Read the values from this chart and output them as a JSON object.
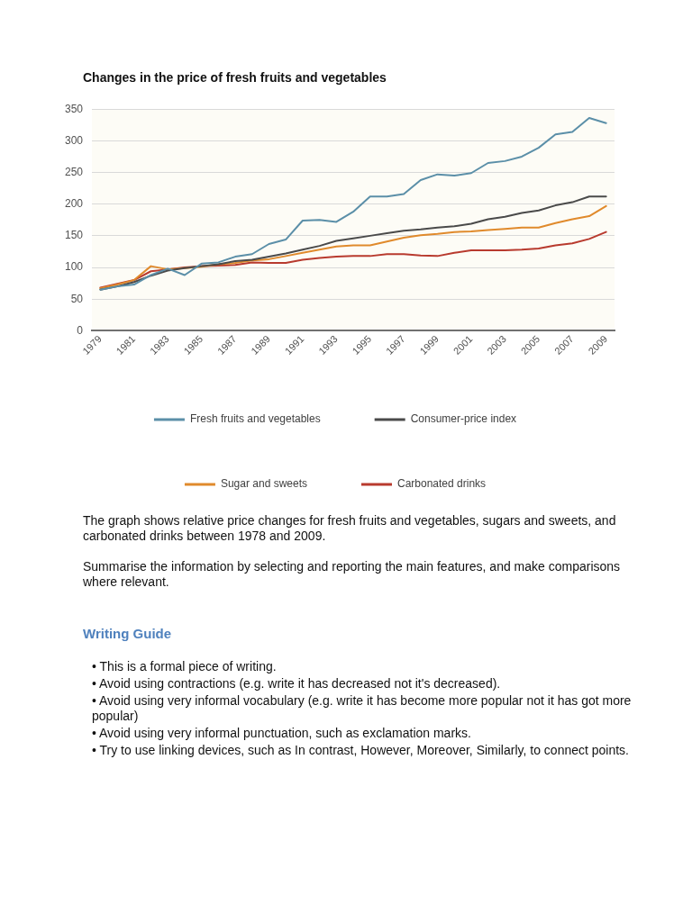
{
  "chart_data": {
    "type": "line",
    "title": "Changes in the price of fresh fruits and vegetables",
    "categories": [
      "1979",
      null,
      "1981",
      null,
      "1983",
      null,
      "1985",
      null,
      "1987",
      null,
      "1989",
      null,
      "1991",
      null,
      "1993",
      null,
      "1995",
      null,
      "1997",
      null,
      "1999",
      null,
      "2001",
      null,
      "2003",
      null,
      "2005",
      null,
      "2007",
      null,
      "2009"
    ],
    "series": [
      {
        "name": "Fresh fruits and vegetables",
        "color": "#5b8fa8",
        "values": [
          65,
          70,
          73,
          88,
          98,
          88,
          106,
          108,
          117,
          121,
          137,
          144,
          174,
          175,
          172,
          188,
          212,
          212,
          216,
          238,
          247,
          245,
          249,
          265,
          268,
          275,
          289,
          310,
          314,
          336,
          328
        ]
      },
      {
        "name": "Consumer-price index",
        "color": "#4a4a4a",
        "values": [
          65,
          70,
          77,
          87,
          95,
          99,
          102,
          105,
          110,
          112,
          117,
          122,
          128,
          134,
          142,
          146,
          150,
          154,
          158,
          160,
          163,
          165,
          169,
          176,
          180,
          186,
          190,
          198,
          203,
          212,
          212
        ]
      },
      {
        "name": "Sugar and sweets",
        "color": "#e08a2c",
        "values": [
          67,
          73,
          80,
          102,
          97,
          99,
          101,
          105,
          107,
          111,
          113,
          118,
          123,
          128,
          133,
          135,
          135,
          141,
          147,
          151,
          153,
          156,
          157,
          159,
          161,
          163,
          163,
          170,
          176,
          181,
          197
        ]
      },
      {
        "name": "Carbonated drinks",
        "color": "#b83a2e",
        "values": [
          68,
          74,
          80,
          94,
          97,
          100,
          102,
          103,
          104,
          108,
          107,
          107,
          112,
          115,
          117,
          118,
          118,
          121,
          121,
          119,
          118,
          123,
          127,
          127,
          127,
          128,
          130,
          135,
          138,
          145,
          156
        ]
      }
    ],
    "ylim": [
      0,
      350
    ],
    "yticks": [
      0,
      50,
      100,
      150,
      200,
      250,
      300,
      350
    ],
    "grid": "y",
    "legend": "bottom",
    "marker": "none",
    "line_style": "solid",
    "annotations": [
      "The graph shows relative price changes for fresh fruits and vegetables, sugars and sweets, and carbonated drinks between 1978 and 2009.",
      "Summarise the information by selecting and reporting the main features, and make comparisons where relevant.",
      "Writing Guide",
      "• This is a formal piece of writing.",
      "• Avoid using contractions (e.g. write it has decreased not it's decreased).",
      "• Avoid using very informal vocabulary (e.g. write it has become more popular not it has got more popular)",
      "• Avoid using very informal punctuation, such as exclamation marks.",
      "• Try to use linking devices, such as In contrast, However, Moreover, Similarly, to connect points."
    ]
  }
}
